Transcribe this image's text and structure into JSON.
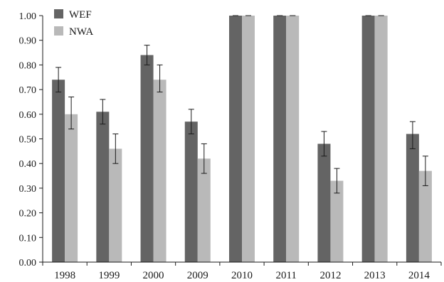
{
  "chart_data": {
    "type": "bar",
    "title": "",
    "xlabel": "",
    "ylabel": "",
    "categories": [
      "1998",
      "1999",
      "2000",
      "2009",
      "2010",
      "2011",
      "2012",
      "2013",
      "2014"
    ],
    "series": [
      {
        "name": "WEF",
        "color": "#646464",
        "values": [
          0.74,
          0.61,
          0.84,
          0.57,
          1.0,
          1.0,
          0.48,
          1.0,
          0.52
        ],
        "err_low": [
          0.69,
          0.56,
          0.8,
          0.52,
          1.0,
          1.0,
          0.43,
          1.0,
          0.46
        ],
        "err_high": [
          0.79,
          0.66,
          0.88,
          0.62,
          1.0,
          1.0,
          0.53,
          1.0,
          0.57
        ]
      },
      {
        "name": "NWA",
        "color": "#b9b9b9",
        "values": [
          0.6,
          0.46,
          0.74,
          0.42,
          1.0,
          1.0,
          0.33,
          1.0,
          0.37
        ],
        "err_low": [
          0.54,
          0.4,
          0.69,
          0.36,
          1.0,
          1.0,
          0.28,
          1.0,
          0.31
        ],
        "err_high": [
          0.67,
          0.52,
          0.8,
          0.48,
          1.0,
          1.0,
          0.38,
          1.0,
          0.43
        ]
      }
    ],
    "ylim": [
      0,
      1
    ],
    "yticks": [
      "0.00",
      "0.10",
      "0.20",
      "0.30",
      "0.40",
      "0.50",
      "0.60",
      "0.70",
      "0.80",
      "0.90",
      "1.00"
    ],
    "grid": false,
    "legend": "top-left"
  }
}
